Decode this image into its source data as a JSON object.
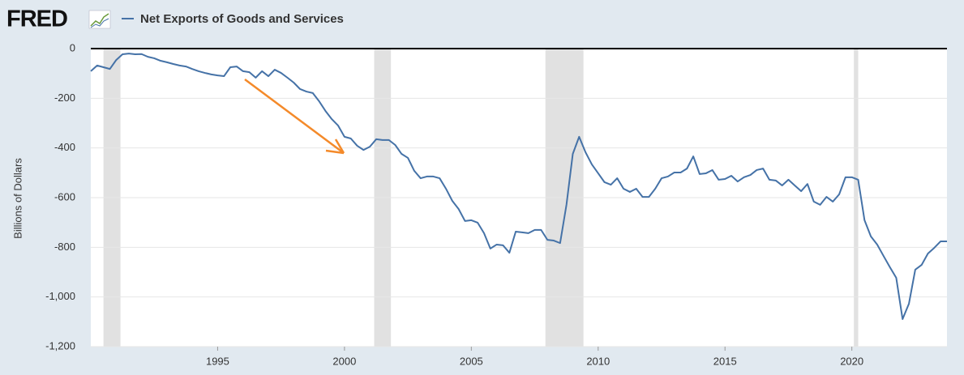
{
  "chart_data": {
    "type": "line",
    "logo": "FRED",
    "ylabel": "Billions of Dollars",
    "series": [
      {
        "name": "Net Exports of Goods and Services",
        "color": "#4572a7",
        "values": [
          -91,
          -68,
          -75,
          -82,
          -46,
          -23,
          -20,
          -23,
          -22,
          -33,
          -39,
          -49,
          -55,
          -62,
          -68,
          -72,
          -82,
          -91,
          -98,
          -104,
          -108,
          -111,
          -75,
          -72,
          -91,
          -95,
          -117,
          -91,
          -111,
          -85,
          -98,
          -117,
          -137,
          -163,
          -173,
          -179,
          -212,
          -251,
          -284,
          -310,
          -355,
          -362,
          -391,
          -408,
          -395,
          -365,
          -368,
          -368,
          -388,
          -424,
          -440,
          -492,
          -522,
          -515,
          -515,
          -522,
          -564,
          -613,
          -646,
          -694,
          -691,
          -701,
          -743,
          -805,
          -789,
          -792,
          -822,
          -737,
          -740,
          -743,
          -730,
          -730,
          -770,
          -773,
          -783,
          -629,
          -424,
          -355,
          -417,
          -466,
          -502,
          -538,
          -548,
          -522,
          -564,
          -577,
          -564,
          -597,
          -597,
          -564,
          -522,
          -515,
          -499,
          -499,
          -483,
          -434,
          -505,
          -502,
          -489,
          -528,
          -525,
          -512,
          -535,
          -518,
          -509,
          -489,
          -483,
          -528,
          -531,
          -551,
          -528,
          -551,
          -574,
          -545,
          -616,
          -629,
          -597,
          -616,
          -587,
          -518,
          -518,
          -528,
          -691,
          -756,
          -789,
          -835,
          -880,
          -923,
          -1089,
          -1027,
          -890,
          -871,
          -825,
          -802,
          -776,
          -776
        ]
      }
    ],
    "x": [
      1990,
      1990.25,
      1990.5,
      1990.75,
      1991,
      1991.25,
      1991.5,
      1991.75,
      1992,
      1992.25,
      1992.5,
      1992.75,
      1993,
      1993.25,
      1993.5,
      1993.75,
      1994,
      1994.25,
      1994.5,
      1994.75,
      1995,
      1995.25,
      1995.5,
      1995.75,
      1996,
      1996.25,
      1996.5,
      1996.75,
      1997,
      1997.25,
      1997.5,
      1997.75,
      1998,
      1998.25,
      1998.5,
      1998.75,
      1999,
      1999.25,
      1999.5,
      1999.75,
      2000,
      2000.25,
      2000.5,
      2000.75,
      2001,
      2001.25,
      2001.5,
      2001.75,
      2002,
      2002.25,
      2002.5,
      2002.75,
      2003,
      2003.25,
      2003.5,
      2003.75,
      2004,
      2004.25,
      2004.5,
      2004.75,
      2005,
      2005.25,
      2005.5,
      2005.75,
      2006,
      2006.25,
      2006.5,
      2006.75,
      2007,
      2007.25,
      2007.5,
      2007.75,
      2008,
      2008.25,
      2008.5,
      2008.75,
      2009,
      2009.25,
      2009.5,
      2009.75,
      2010,
      2010.25,
      2010.5,
      2010.75,
      2011,
      2011.25,
      2011.5,
      2011.75,
      2012,
      2012.25,
      2012.5,
      2012.75,
      2013,
      2013.25,
      2013.5,
      2013.75,
      2014,
      2014.25,
      2014.5,
      2014.75,
      2015,
      2015.25,
      2015.5,
      2015.75,
      2016,
      2016.25,
      2016.5,
      2016.75,
      2017,
      2017.25,
      2017.5,
      2017.75,
      2018,
      2018.25,
      2018.5,
      2018.75,
      2019,
      2019.25,
      2019.5,
      2019.75,
      2020,
      2020.25,
      2020.5,
      2020.75,
      2021,
      2021.25,
      2021.5,
      2021.75,
      2022,
      2022.25,
      2022.5,
      2022.75,
      2023,
      2023.25,
      2023.5,
      2023.75
    ],
    "recessions": [
      [
        1990.5,
        1991.17
      ],
      [
        2001.17,
        2001.83
      ],
      [
        2007.92,
        2009.42
      ],
      [
        2020.08,
        2020.25
      ]
    ],
    "xlim": [
      1990,
      2023.75
    ],
    "xticks": [
      1995,
      2000,
      2005,
      2010,
      2015,
      2020
    ],
    "ylim": [
      -1200,
      0
    ],
    "yticks": [
      0,
      -200,
      -400,
      -600,
      -800,
      {
        "value": -1000,
        "label": "-1,000"
      },
      {
        "value": -1200,
        "label": "-1,200"
      }
    ],
    "grid": true
  }
}
